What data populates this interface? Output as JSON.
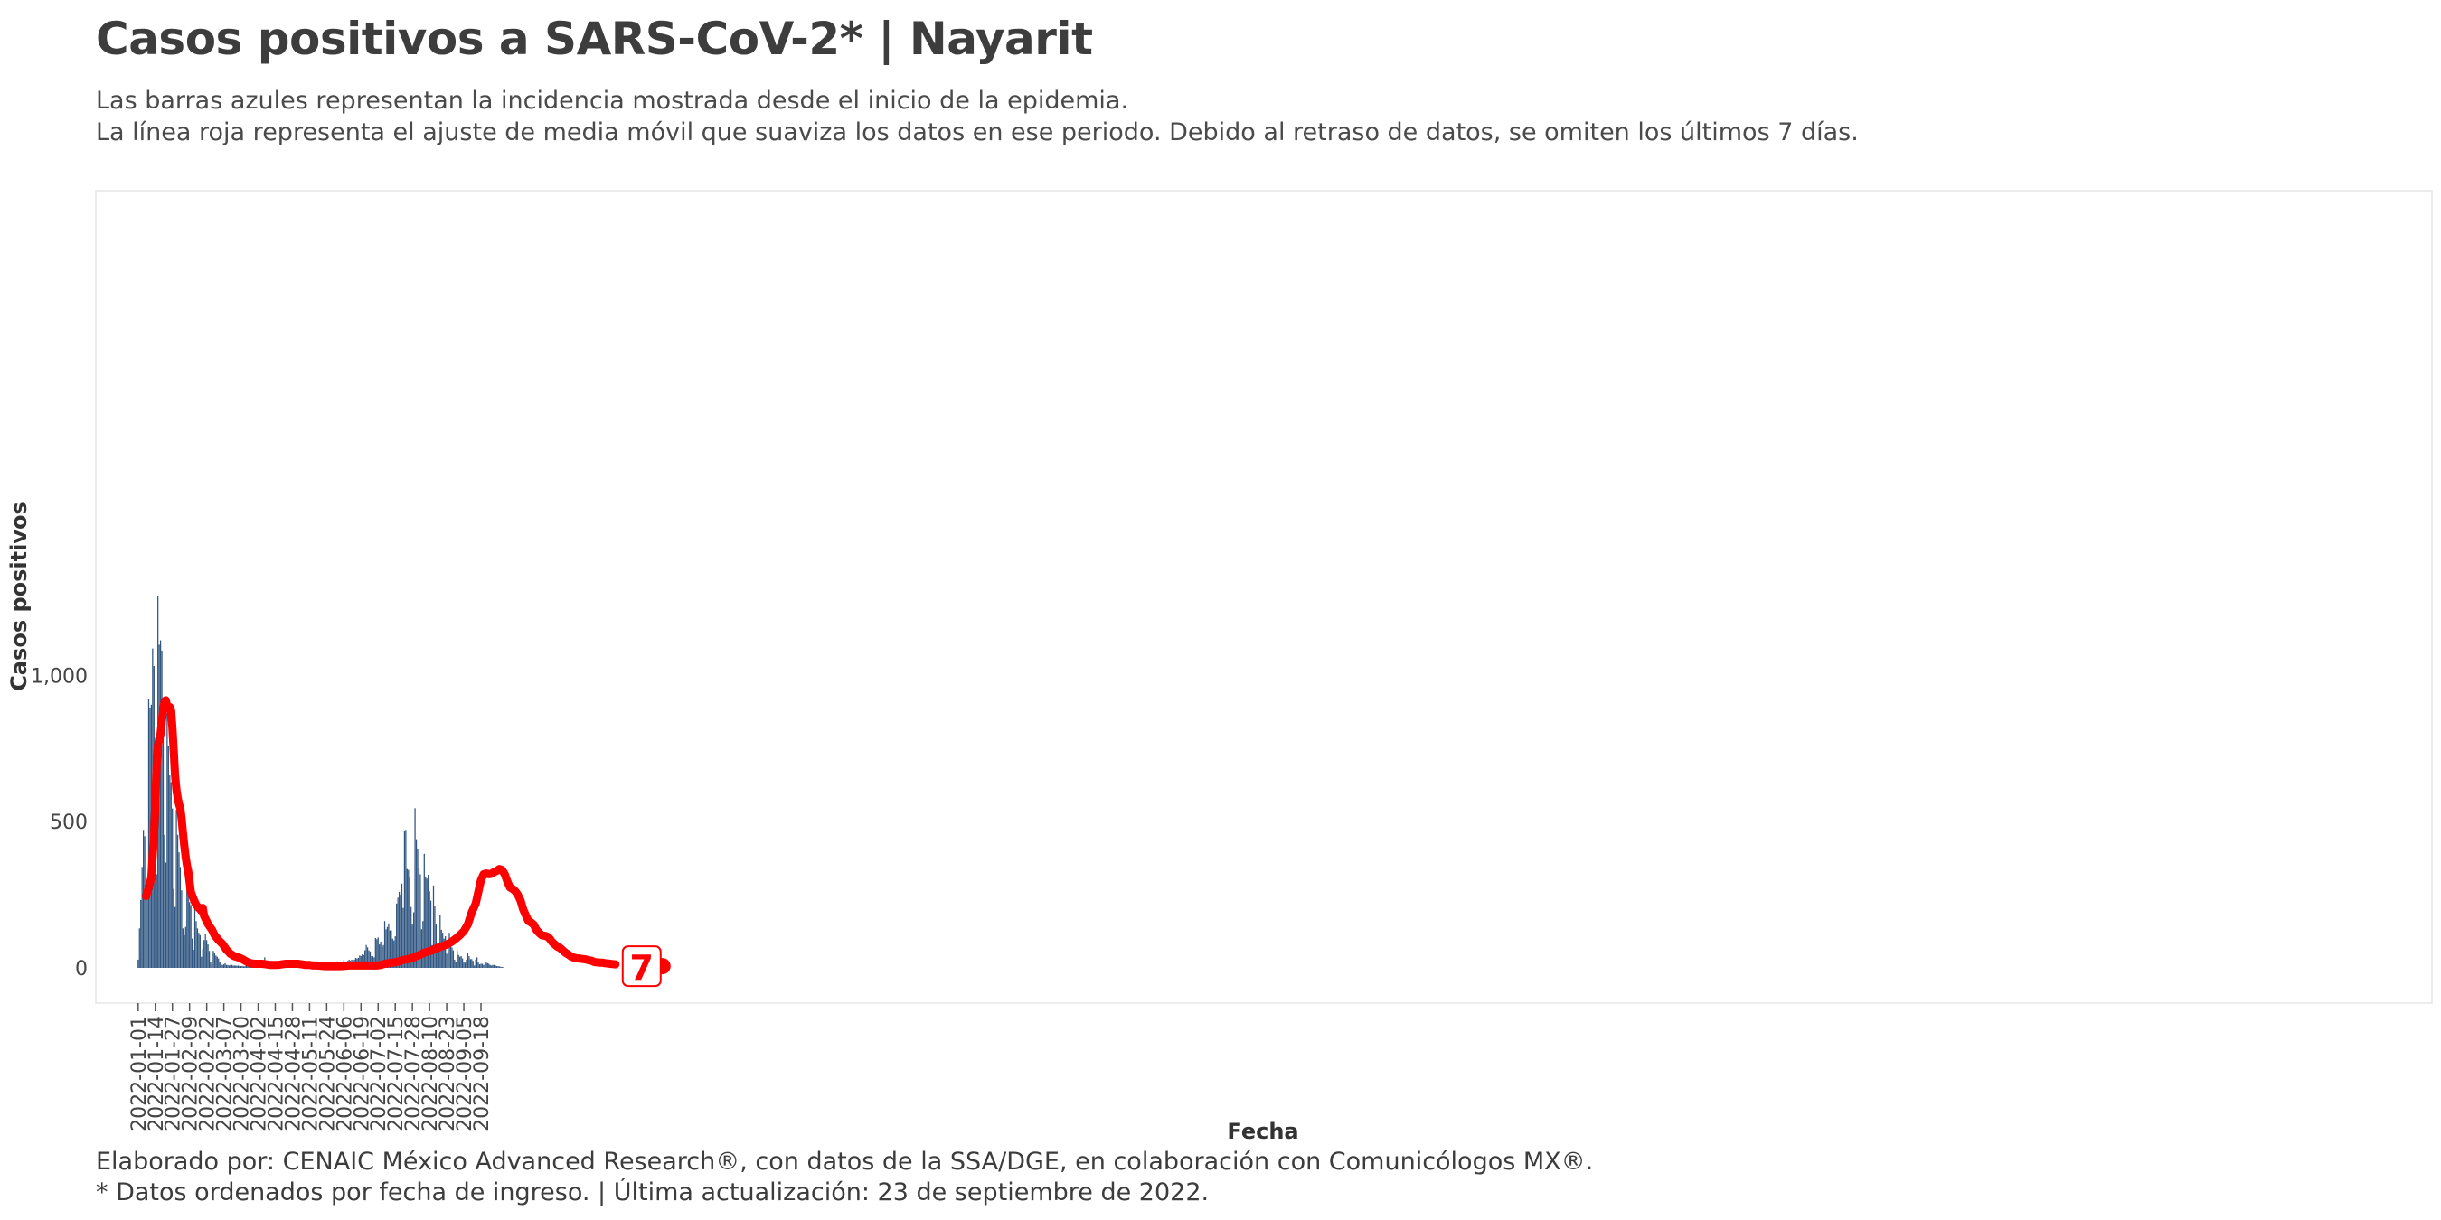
{
  "title": "Casos positivos a SARS-CoV-2* | Nayarit",
  "subtitle_lines": [
    "Las barras azules representan la incidencia mostrada desde el inicio de la epidemia.",
    "La línea roja representa el ajuste de media móvil que suaviza los datos en ese periodo. Debido al retraso de datos, se omiten los últimos 7 días."
  ],
  "caption_lines": [
    "Elaborado por: CENAIC México Advanced Research®, con datos de la SSA/DGE, en colaboración con Comunicólogos MX®.",
    "* Datos ordenados por fecha de ingreso. | Última actualización: 23 de septiembre de 2022."
  ],
  "colors": {
    "bars": "#2f5580",
    "line": "#ff0000",
    "text": "#3c3c3c"
  },
  "chart_data": {
    "type": "bar",
    "xlabel": "Fecha",
    "ylabel": "Casos positivos",
    "start_date": "2022-01-01",
    "x_ticks": [
      "2022-01-01",
      "2022-01-14",
      "2022-01-27",
      "2022-02-09",
      "2022-02-22",
      "2022-03-07",
      "2022-03-20",
      "2022-04-02",
      "2022-04-15",
      "2022-04-28",
      "2022-05-11",
      "2022-05-24",
      "2022-06-06",
      "2022-06-19",
      "2022-07-02",
      "2022-07-15",
      "2022-07-28",
      "2022-08-10",
      "2022-08-23",
      "2022-09-05",
      "2022-09-18"
    ],
    "y_ticks": [
      0,
      500,
      1000
    ],
    "y_tick_labels": [
      "0",
      "500",
      "1,000"
    ],
    "ylim": [
      -60,
      1270
    ],
    "end_label": "7",
    "series": [
      {
        "name": "Casos positivos",
        "type": "bar",
        "values": [
          28,
          135,
          232,
          345,
          472,
          450,
          240,
          232,
          918,
          890,
          900,
          1092,
          1032,
          462,
          320,
          1270,
          1105,
          1120,
          1085,
          875,
          455,
          360,
          870,
          760,
          658,
          635,
          545,
          270,
          208,
          540,
          455,
          395,
          345,
          265,
          135,
          112,
          140,
          362,
          262,
          225,
          215,
          100,
          62,
          230,
          160,
          135,
          120,
          112,
          38,
          65,
          95,
          115,
          95,
          80,
          58,
          20,
          12,
          58,
          52,
          42,
          38,
          32,
          20,
          12,
          10,
          12,
          16,
          10,
          10,
          8,
          10,
          10,
          8,
          8,
          8,
          7,
          8,
          6,
          6,
          7,
          5,
          6,
          8,
          8,
          10,
          18,
          12,
          10,
          8,
          8,
          10,
          12,
          8,
          6,
          8,
          12,
          36,
          20,
          16,
          14,
          12,
          14,
          10,
          12,
          8,
          10,
          10,
          8,
          8,
          6,
          6,
          5,
          4,
          4,
          4,
          4,
          5,
          4,
          4,
          5,
          4,
          3,
          3,
          4,
          4,
          3,
          3,
          4,
          3,
          3,
          3,
          3,
          4,
          4,
          5,
          4,
          4,
          4,
          4,
          4,
          4,
          4,
          3,
          3,
          3,
          3,
          6,
          4,
          4,
          4,
          3,
          22,
          16,
          16,
          20,
          14,
          26,
          22,
          22,
          24,
          28,
          24,
          28,
          22,
          28,
          34,
          32,
          34,
          42,
          40,
          46,
          44,
          60,
          78,
          70,
          60,
          56,
          40,
          40,
          36,
          102,
          98,
          104,
          80,
          90,
          72,
          78,
          160,
          132,
          140,
          152,
          128,
          128,
          100,
          94,
          108,
          220,
          240,
          260,
          250,
          288,
          205,
          470,
          472,
          338,
          335,
          310,
          208,
          148,
          190,
          546,
          440,
          408,
          340,
          320,
          132,
          160,
          390,
          310,
          305,
          318,
          262,
          230,
          78,
          282,
          210,
          148,
          62,
          72,
          180,
          130,
          120,
          100,
          108,
          48,
          54,
          120,
          90,
          70,
          60,
          28,
          20,
          58,
          44,
          38,
          40,
          32,
          18,
          18,
          28,
          52,
          40,
          30,
          30,
          24,
          8,
          28,
          36,
          18,
          12,
          14,
          14,
          10,
          12,
          18,
          16,
          14,
          10,
          8,
          10,
          10,
          8,
          6,
          6,
          5,
          4,
          3,
          2
        ]
      },
      {
        "name": "Media móvil",
        "type": "line",
        "points": [
          [
            6,
            245
          ],
          [
            9,
            290
          ],
          [
            10,
            310
          ],
          [
            12,
            450
          ],
          [
            13,
            560
          ],
          [
            14,
            690
          ],
          [
            15,
            760
          ],
          [
            16,
            785
          ],
          [
            17,
            800
          ],
          [
            18,
            845
          ],
          [
            19,
            880
          ],
          [
            20,
            910
          ],
          [
            21,
            915
          ],
          [
            22,
            895
          ],
          [
            23,
            890
          ],
          [
            24,
            892
          ],
          [
            25,
            880
          ],
          [
            26,
            820
          ],
          [
            27,
            740
          ],
          [
            28,
            660
          ],
          [
            29,
            610
          ],
          [
            30,
            580
          ],
          [
            31,
            560
          ],
          [
            32,
            545
          ],
          [
            33,
            510
          ],
          [
            34,
            460
          ],
          [
            35,
            420
          ],
          [
            36,
            380
          ],
          [
            37,
            350
          ],
          [
            38,
            330
          ],
          [
            40,
            260
          ],
          [
            42,
            235
          ],
          [
            44,
            215
          ],
          [
            47,
            200
          ],
          [
            48,
            195
          ],
          [
            49,
            205
          ],
          [
            50,
            178
          ],
          [
            53,
            150
          ],
          [
            56,
            130
          ],
          [
            58,
            112
          ],
          [
            61,
            95
          ],
          [
            64,
            82
          ],
          [
            67,
            62
          ],
          [
            70,
            48
          ],
          [
            73,
            40
          ],
          [
            76,
            36
          ],
          [
            79,
            30
          ],
          [
            82,
            22
          ],
          [
            85,
            16
          ],
          [
            88,
            14
          ],
          [
            91,
            14
          ],
          [
            94,
            14
          ],
          [
            97,
            12
          ],
          [
            100,
            10
          ],
          [
            103,
            10
          ],
          [
            106,
            10
          ],
          [
            109,
            12
          ],
          [
            112,
            14
          ],
          [
            115,
            14
          ],
          [
            118,
            14
          ],
          [
            121,
            14
          ],
          [
            124,
            12
          ],
          [
            127,
            10
          ],
          [
            130,
            10
          ],
          [
            133,
            8
          ],
          [
            136,
            8
          ],
          [
            139,
            7
          ],
          [
            142,
            6
          ],
          [
            145,
            6
          ],
          [
            148,
            6
          ],
          [
            151,
            6
          ],
          [
            154,
            6
          ],
          [
            157,
            7
          ],
          [
            160,
            8
          ],
          [
            163,
            8
          ],
          [
            166,
            8
          ],
          [
            169,
            8
          ],
          [
            172,
            8
          ],
          [
            175,
            8
          ],
          [
            178,
            8
          ],
          [
            181,
            8
          ],
          [
            184,
            10
          ],
          [
            187,
            14
          ],
          [
            190,
            16
          ],
          [
            193,
            18
          ],
          [
            196,
            20
          ],
          [
            199,
            24
          ],
          [
            202,
            28
          ],
          [
            205,
            30
          ],
          [
            208,
            34
          ],
          [
            211,
            40
          ],
          [
            214,
            45
          ],
          [
            217,
            52
          ],
          [
            220,
            56
          ],
          [
            223,
            60
          ],
          [
            226,
            66
          ],
          [
            229,
            72
          ],
          [
            232,
            76
          ],
          [
            235,
            82
          ],
          [
            238,
            90
          ],
          [
            241,
            100
          ],
          [
            244,
            112
          ],
          [
            247,
            125
          ],
          [
            250,
            148
          ],
          [
            253,
            190
          ],
          [
            256,
            220
          ],
          [
            258,
            260
          ],
          [
            260,
            300
          ],
          [
            262,
            320
          ],
          [
            264,
            323
          ],
          [
            266,
            320
          ],
          [
            268,
            322
          ],
          [
            270,
            328
          ],
          [
            272,
            332
          ],
          [
            274,
            338
          ],
          [
            276,
            335
          ],
          [
            278,
            320
          ],
          [
            280,
            295
          ],
          [
            282,
            275
          ],
          [
            284,
            270
          ],
          [
            286,
            262
          ],
          [
            288,
            250
          ],
          [
            290,
            230
          ],
          [
            292,
            200
          ],
          [
            294,
            180
          ],
          [
            296,
            160
          ],
          [
            298,
            155
          ],
          [
            300,
            148
          ],
          [
            302,
            130
          ],
          [
            304,
            120
          ],
          [
            306,
            112
          ],
          [
            308,
            110
          ],
          [
            310,
            108
          ],
          [
            312,
            100
          ],
          [
            314,
            88
          ],
          [
            316,
            80
          ],
          [
            318,
            72
          ],
          [
            320,
            68
          ],
          [
            322,
            60
          ],
          [
            324,
            52
          ],
          [
            326,
            46
          ],
          [
            328,
            40
          ],
          [
            330,
            36
          ],
          [
            332,
            33
          ],
          [
            334,
            32
          ],
          [
            336,
            31
          ],
          [
            338,
            30
          ],
          [
            340,
            28
          ],
          [
            342,
            26
          ],
          [
            344,
            24
          ],
          [
            346,
            20
          ],
          [
            348,
            19
          ],
          [
            350,
            18
          ],
          [
            352,
            18
          ],
          [
            354,
            16
          ],
          [
            356,
            15
          ],
          [
            358,
            14
          ],
          [
            360,
            13
          ],
          [
            362,
            12
          ]
        ]
      }
    ]
  }
}
